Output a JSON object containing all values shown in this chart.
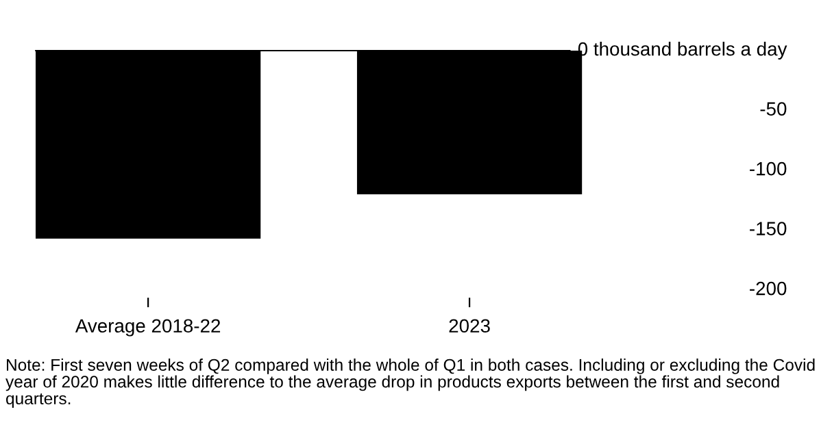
{
  "chart_data": {
    "type": "bar",
    "categories": [
      "Average 2018-22",
      "2023"
    ],
    "values": [
      -157,
      -120
    ],
    "color": "#000000",
    "ylim": [
      -200,
      0
    ],
    "yticks": [
      {
        "value": 0,
        "label": "0 thousand barrels a day"
      },
      -50,
      -100,
      -150,
      -200
    ],
    "grid": false,
    "ref_lines": [
      {
        "axis": "y",
        "value": 0,
        "color": "#000000",
        "line_style": "solid"
      }
    ],
    "annotations": [
      "Note: First seven weeks of Q2 compared with the whole of Q1 in both cases. Including or excluding the Covid year of 2020 makes little difference to the average drop in products exports between the first and second quarters."
    ]
  }
}
